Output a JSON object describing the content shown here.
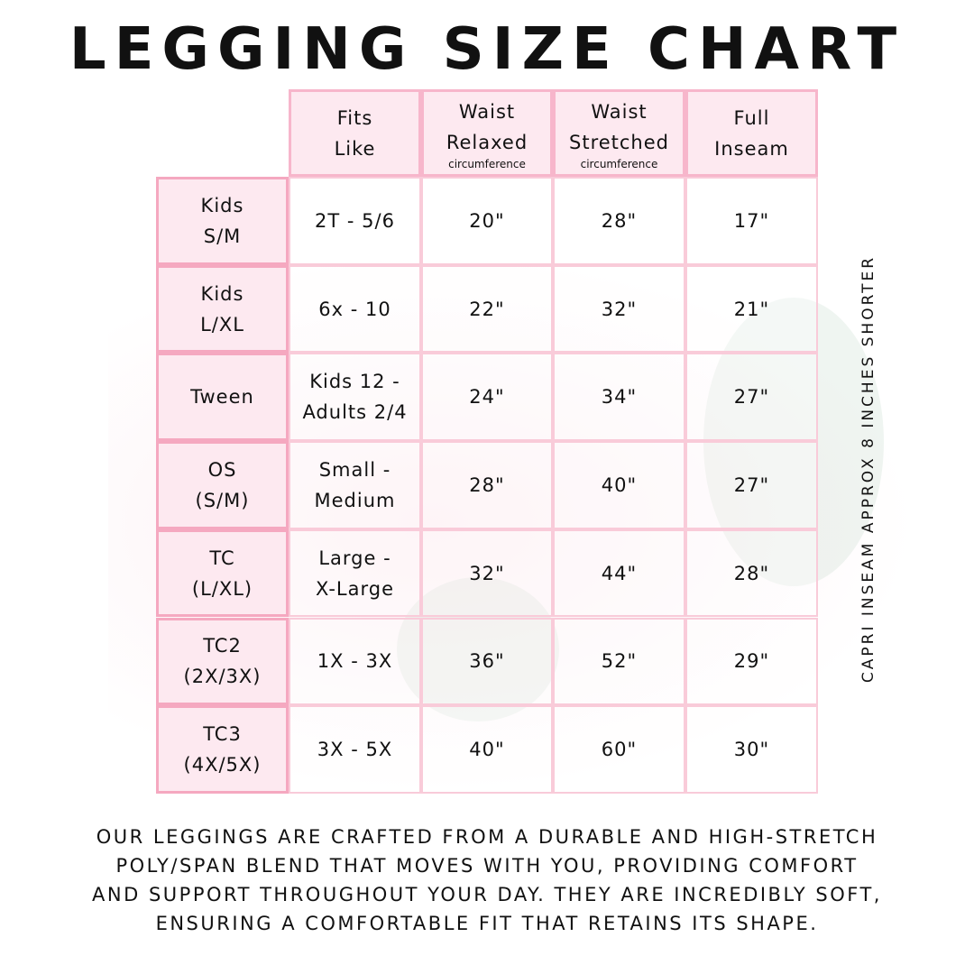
{
  "title": "LEGGING SIZE CHART",
  "colors": {
    "border": "#f7b6cb",
    "header_fill": "#fde9f0"
  },
  "columns": [
    {
      "line1": "Fits",
      "line2": "Like",
      "sub": ""
    },
    {
      "line1": "Waist",
      "line2": "Relaxed",
      "sub": "circumference"
    },
    {
      "line1": "Waist",
      "line2": "Stretched",
      "sub": "circumference"
    },
    {
      "line1": "Full",
      "line2": "Inseam",
      "sub": ""
    }
  ],
  "rows": [
    {
      "size1": "Kids",
      "size2": "S/M",
      "fits1": "2T - 5/6",
      "fits2": "",
      "relaxed": "20\"",
      "stretched": "28\"",
      "inseam": "17\""
    },
    {
      "size1": "Kids",
      "size2": "L/XL",
      "fits1": "6x - 10",
      "fits2": "",
      "relaxed": "22\"",
      "stretched": "32\"",
      "inseam": "21\""
    },
    {
      "size1": "Tween",
      "size2": "",
      "fits1": "Kids 12 -",
      "fits2": "Adults 2/4",
      "relaxed": "24\"",
      "stretched": "34\"",
      "inseam": "27\""
    },
    {
      "size1": "OS",
      "size2": "(S/M)",
      "fits1": "Small -",
      "fits2": "Medium",
      "relaxed": "28\"",
      "stretched": "40\"",
      "inseam": "27\""
    },
    {
      "size1": "TC",
      "size2": "(L/XL)",
      "fits1": "Large -",
      "fits2": "X-Large",
      "relaxed": "32\"",
      "stretched": "44\"",
      "inseam": "28\""
    },
    {
      "size1": "TC2",
      "size2": "(2X/3X)",
      "fits1": "1X - 3X",
      "fits2": "",
      "relaxed": "36\"",
      "stretched": "52\"",
      "inseam": "29\""
    },
    {
      "size1": "TC3",
      "size2": "(4X/5X)",
      "fits1": "3X - 5X",
      "fits2": "",
      "relaxed": "40\"",
      "stretched": "60\"",
      "inseam": "30\""
    }
  ],
  "side_note": "CAPRI INSEAM APPROX 8 INCHES SHORTER",
  "footer": [
    "Our leggings are crafted from a durable and high-stretch",
    "poly/span blend that moves with you, providing comfort",
    "and support throughout your day. They are incredibly soft,",
    "ensuring a comfortable fit that retains its shape."
  ]
}
